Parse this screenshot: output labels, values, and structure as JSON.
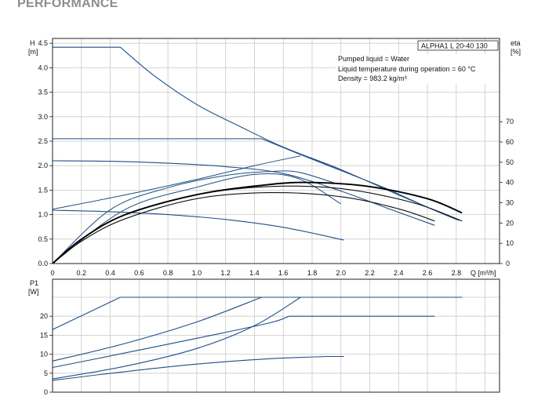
{
  "page": {
    "heading": "PERFORMANCE"
  },
  "chart_data": [
    {
      "type": "line",
      "panel": "head-curve",
      "title": "ALPHA1 L 20-40 130",
      "y_label": [
        "H",
        "[m]"
      ],
      "right_label": [
        "eta",
        "[%]"
      ],
      "x_label": "Q [m³/h]",
      "xlim": [
        0,
        3.1
      ],
      "ylim": [
        0,
        4.5
      ],
      "right_ylim": [
        0,
        70
      ],
      "x_ticks": [
        "0",
        "0.2",
        "0.4",
        "0.6",
        "0.8",
        "1.0",
        "1.2",
        "1.4",
        "1.6",
        "1.8",
        "2.0",
        "2.2",
        "2.4",
        "2.6",
        "2.8"
      ],
      "y_ticks": [
        "0.0",
        "0.5",
        "1.0",
        "1.5",
        "2.0",
        "2.5",
        "3.0",
        "3.5",
        "4.0",
        "4.5"
      ],
      "right_ticks": [
        "0",
        "10",
        "20",
        "30",
        "40",
        "50",
        "60",
        "70"
      ],
      "grid": true,
      "info_lines": [
        "Pumped liquid = Water",
        "Liquid temperature during operation = 60 °C",
        "Density = 983.2 kg/m³"
      ],
      "series": [
        {
          "role": "max-curve",
          "x": [
            0,
            0.47,
            0.7,
            1.0,
            1.3,
            1.6,
            2.0,
            2.4,
            2.8
          ],
          "y": [
            4.42,
            4.42,
            3.85,
            3.25,
            2.8,
            2.38,
            1.92,
            1.4,
            0.9
          ]
        },
        {
          "role": "constant-pressure",
          "x": [
            0,
            1.45,
            1.7,
            2.0,
            2.3,
            2.6,
            2.82
          ],
          "y": [
            2.55,
            2.55,
            2.25,
            1.9,
            1.55,
            1.15,
            0.88
          ]
        },
        {
          "role": "prop-pressure",
          "x": [
            0,
            0.4,
            0.8,
            1.2,
            1.6,
            2.0,
            2.35,
            2.65
          ],
          "y": [
            2.1,
            2.09,
            2.05,
            1.98,
            1.84,
            1.48,
            1.1,
            0.78
          ]
        },
        {
          "role": "curve-low",
          "x": [
            0,
            0.4,
            0.8,
            1.2,
            1.6,
            2.02
          ],
          "y": [
            1.09,
            1.06,
            1.0,
            0.9,
            0.74,
            0.48
          ]
        },
        {
          "role": "system-curve-1",
          "x": [
            0,
            0.5,
            1.0,
            1.4,
            1.72
          ],
          "y": [
            1.11,
            1.4,
            1.72,
            2.0,
            2.2
          ]
        },
        {
          "role": "system-curve-2",
          "x": [
            0,
            0.5,
            1.0,
            1.4,
            1.7,
            2.0
          ],
          "y": [
            0.0,
            1.1,
            1.56,
            1.82,
            1.74,
            1.22
          ]
        },
        {
          "role": "system-curve-3",
          "x": [
            0,
            0.4,
            0.8,
            1.2,
            1.5,
            1.7,
            1.95
          ],
          "y": [
            0.0,
            1.1,
            1.55,
            1.8,
            1.88,
            1.87,
            1.65
          ]
        },
        {
          "role": "eta-1",
          "x": [
            0,
            0.2,
            0.5,
            1.0,
            1.5,
            2.0,
            2.4,
            2.65
          ],
          "y": [
            0,
            11,
            22,
            32,
            35,
            33,
            27,
            21
          ]
        },
        {
          "role": "eta-2",
          "x": [
            0,
            0.2,
            0.5,
            1.0,
            1.5,
            2.0,
            2.5,
            2.84
          ],
          "y": [
            0,
            12,
            24,
            34,
            38,
            37,
            30,
            21
          ]
        },
        {
          "role": "eta-3",
          "x": [
            0,
            0.2,
            0.5,
            1.0,
            1.5,
            1.8,
            2.2,
            2.6,
            2.84
          ],
          "y": [
            0,
            12,
            24,
            34,
            39,
            40,
            38,
            32,
            25
          ]
        }
      ]
    },
    {
      "type": "line",
      "panel": "power-curve",
      "y_label": [
        "P1",
        "[W]"
      ],
      "xlim": [
        0,
        3.1
      ],
      "ylim": [
        0,
        25.5
      ],
      "y_ticks": [
        "0",
        "5",
        "10",
        "15",
        "20"
      ],
      "grid": true,
      "series": [
        {
          "role": "p-max",
          "x": [
            0,
            0.47,
            2.84
          ],
          "y": [
            16.5,
            25,
            25
          ]
        },
        {
          "role": "p-const",
          "x": [
            0,
            0.5,
            1.0,
            1.45,
            2.84
          ],
          "y": [
            8.2,
            12.8,
            18.5,
            25,
            25
          ]
        },
        {
          "role": "p-prop",
          "x": [
            0,
            0.5,
            1.0,
            1.5,
            1.64,
            2.65
          ],
          "y": [
            6.5,
            10.3,
            14.2,
            18.2,
            20,
            20
          ]
        },
        {
          "role": "p-auto",
          "x": [
            0,
            0.5,
            1.0,
            1.4,
            1.72,
            2.84
          ],
          "y": [
            3.5,
            6.8,
            11.5,
            17.5,
            25,
            25
          ]
        },
        {
          "role": "p-low",
          "x": [
            0,
            0.5,
            1.0,
            1.5,
            1.9,
            2.02
          ],
          "y": [
            3.1,
            5.4,
            7.4,
            8.8,
            9.4,
            9.4
          ]
        }
      ]
    }
  ]
}
